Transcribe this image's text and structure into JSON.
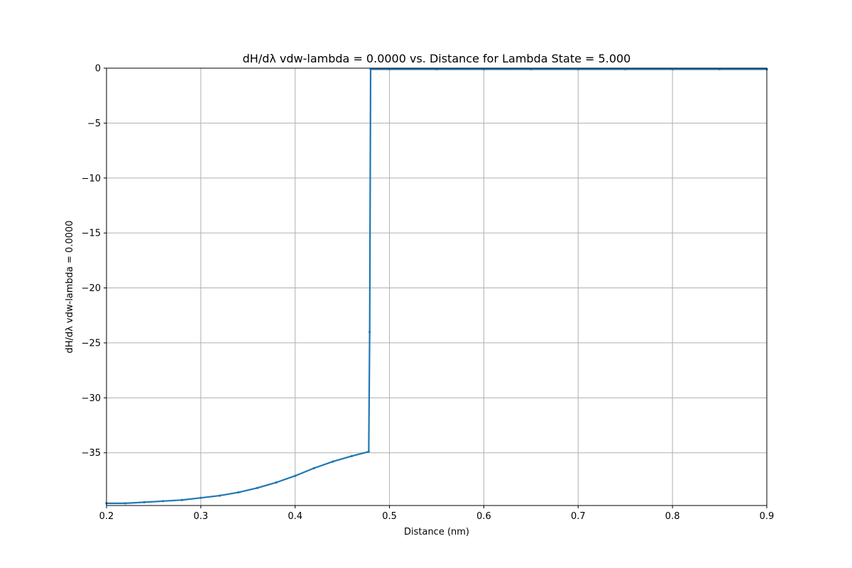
{
  "chart_data": {
    "type": "line",
    "title": "dH/dλ vdw-lambda = 0.0000 vs. Distance for Lambda State = 5.000",
    "xlabel": "Distance (nm)",
    "ylabel": "dH/dλ vdw-lambda = 0.0000",
    "xlim": [
      0.2,
      0.9
    ],
    "ylim": [
      -39.8,
      0
    ],
    "xticks": [
      0.2,
      0.3,
      0.4,
      0.5,
      0.6,
      0.7,
      0.8,
      0.9
    ],
    "xtick_labels": [
      "0.2",
      "0.3",
      "0.4",
      "0.5",
      "0.6",
      "0.7",
      "0.8",
      "0.9"
    ],
    "yticks": [
      0,
      -5,
      -10,
      -15,
      -20,
      -25,
      -30,
      -35
    ],
    "ytick_labels": [
      "0",
      "−5",
      "−10",
      "−15",
      "−20",
      "−25",
      "−30",
      "−35"
    ],
    "grid": true,
    "line_color": "#1f77b4",
    "series": [
      {
        "x": [
          0.2,
          0.22,
          0.24,
          0.26,
          0.28,
          0.3,
          0.32,
          0.34,
          0.36,
          0.38,
          0.4,
          0.42,
          0.44,
          0.46,
          0.478,
          0.479,
          0.48,
          0.5,
          0.55,
          0.6,
          0.65,
          0.7,
          0.75,
          0.8,
          0.85,
          0.9
        ],
        "y": [
          -39.6,
          -39.6,
          -39.5,
          -39.4,
          -39.3,
          -39.1,
          -38.9,
          -38.6,
          -38.2,
          -37.7,
          -37.1,
          -36.4,
          -35.8,
          -35.3,
          -34.9,
          -24.0,
          -0.1,
          -0.1,
          -0.1,
          -0.1,
          -0.1,
          -0.1,
          -0.1,
          -0.1,
          -0.1,
          -0.1
        ]
      }
    ]
  }
}
